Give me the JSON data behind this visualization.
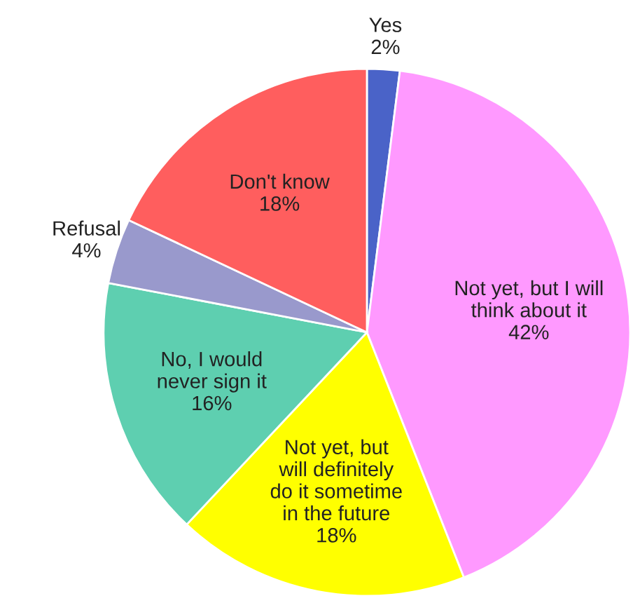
{
  "chart_data": {
    "type": "pie",
    "categories": [
      "Yes",
      "Not yet, but I will\nthink about it",
      "Not yet, but\nwill definitely\ndo it sometime\nin the future",
      "No, I would\nnever sign it",
      "Refusal",
      "Don't know"
    ],
    "values": [
      2,
      42,
      18,
      16,
      4,
      18
    ],
    "value_labels": [
      "2%",
      "42%",
      "18%",
      "16%",
      "4%",
      "18%"
    ],
    "colors": [
      "#4a63c8",
      "#ff99ff",
      "#ffff00",
      "#5ecfb0",
      "#9999cc",
      "#ff5e5e"
    ],
    "legend": false
  }
}
